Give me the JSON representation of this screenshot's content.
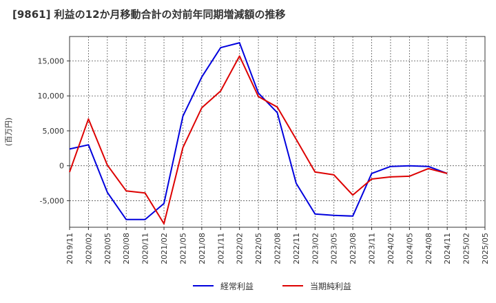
{
  "chart_data": {
    "type": "line",
    "title": "[9861]  利益の12か月移動合計の対前年同期増減額の推移",
    "ylabel": "(百万円)",
    "xlabel": "",
    "ylim": [
      -8800,
      18500
    ],
    "yticks": [
      -5000,
      0,
      5000,
      10000,
      15000
    ],
    "ytick_labels": [
      "-5,000",
      "0",
      "5,000",
      "10,000",
      "15,000"
    ],
    "grid": true,
    "legend_position": "bottom-center",
    "x": [
      "2019/11",
      "2020/02",
      "2020/05",
      "2020/08",
      "2020/11",
      "2021/02",
      "2021/05",
      "2021/08",
      "2021/11",
      "2022/02",
      "2022/05",
      "2022/08",
      "2022/11",
      "2023/02",
      "2023/05",
      "2023/08",
      "2023/11",
      "2024/02",
      "2024/05",
      "2024/08",
      "2024/11",
      "2025/02",
      "2025/05"
    ],
    "series": [
      {
        "name": "経常利益",
        "color": "#0000dd",
        "values": [
          2400,
          3000,
          -3800,
          -7700,
          -7700,
          -5400,
          7100,
          12700,
          16900,
          17600,
          10400,
          7600,
          -2500,
          -6900,
          -7100,
          -7200,
          -1100,
          -100,
          0,
          -100,
          -1100,
          null,
          null
        ]
      },
      {
        "name": "当期純利益",
        "color": "#dd0000",
        "values": [
          -900,
          6700,
          100,
          -3600,
          -3900,
          -8300,
          2600,
          8300,
          10700,
          15700,
          9900,
          8400,
          3800,
          -900,
          -1300,
          -4200,
          -1900,
          -1600,
          -1500,
          -400,
          -1100,
          null,
          null
        ]
      }
    ]
  }
}
